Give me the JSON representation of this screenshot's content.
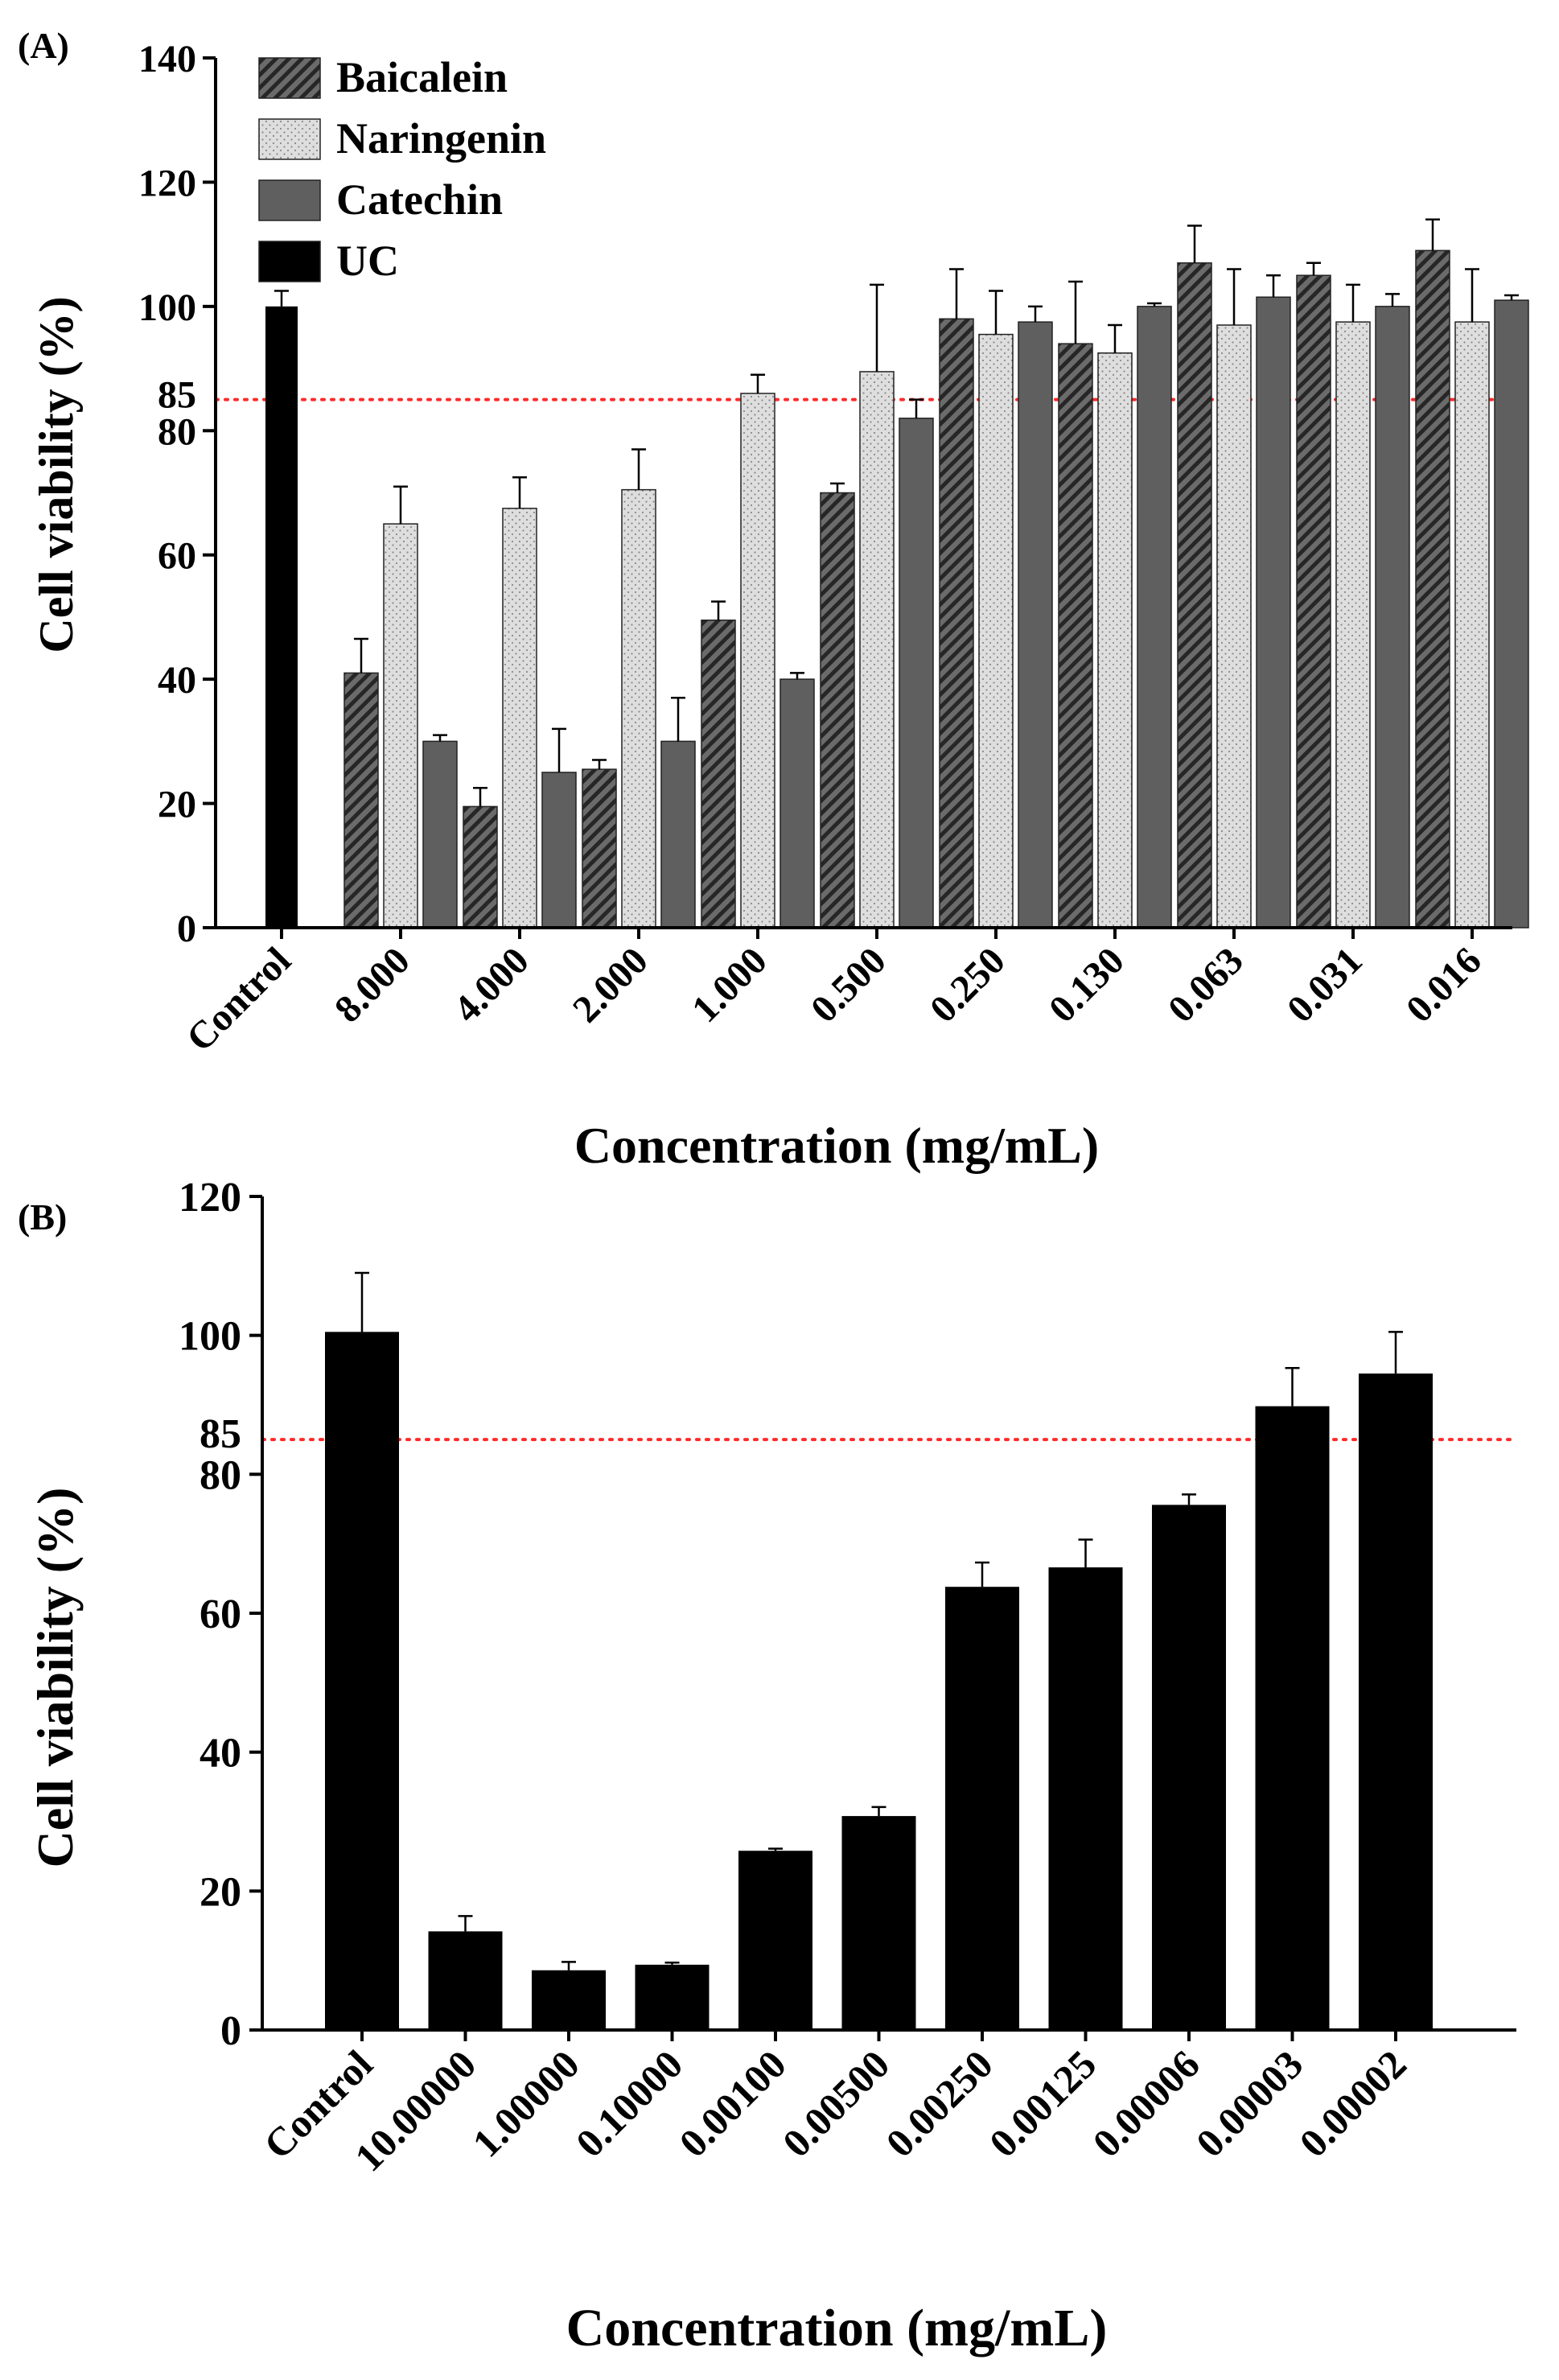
{
  "chart_data": [
    {
      "type": "bar",
      "panel_label": "(A)",
      "title": "",
      "xlabel": "Concentration (mg/mL)",
      "ylabel": "Cell viability (%)",
      "ylim": [
        0,
        140
      ],
      "yticks": [
        0,
        20,
        40,
        60,
        80,
        100,
        120,
        140
      ],
      "reference_line": {
        "value": 85,
        "label": "85",
        "color": "#ff2a2a",
        "style": "dotted"
      },
      "legend": {
        "placement": "top-left",
        "entries": [
          "Baicalein",
          "Naringenin",
          "Catechin",
          "UC"
        ]
      },
      "control": {
        "label": "Control",
        "series": "UC",
        "value": 100,
        "error": 2.5
      },
      "categories": [
        "8.000",
        "4.000",
        "2.000",
        "1.000",
        "0.500",
        "0.250",
        "0.130",
        "0.063",
        "0.031",
        "0.016"
      ],
      "series": [
        {
          "name": "Baicalein",
          "pattern": "hatch",
          "color": "#6b6b6b",
          "values": [
            41,
            19.5,
            25.5,
            49.5,
            70,
            98,
            94,
            107,
            105,
            109
          ],
          "errors": [
            5.5,
            3,
            1.5,
            3,
            1.5,
            8,
            10,
            6,
            2,
            5
          ]
        },
        {
          "name": "Naringenin",
          "pattern": "dots",
          "color": "#d9d9d9",
          "values": [
            65,
            67.5,
            70.5,
            86,
            89.5,
            95.5,
            92.5,
            97,
            97.5,
            97.5
          ],
          "errors": [
            6,
            5,
            6.5,
            3,
            14,
            7,
            4.5,
            9,
            6,
            8.5
          ]
        },
        {
          "name": "Catechin",
          "pattern": "solid",
          "color": "#5f5f5f",
          "values": [
            30,
            25,
            30,
            40,
            82,
            97.5,
            100,
            101.5,
            100,
            101
          ],
          "errors": [
            1,
            7,
            7,
            1,
            3,
            2.5,
            0.5,
            3.5,
            2,
            0.8
          ]
        }
      ]
    },
    {
      "type": "bar",
      "panel_label": "(B)",
      "title": "",
      "xlabel": "Concentration (mg/mL)",
      "ylabel": "Cell viability (%)",
      "ylim": [
        0,
        120
      ],
      "yticks": [
        0,
        20,
        40,
        60,
        80,
        100,
        120
      ],
      "reference_line": {
        "value": 85,
        "label": "85",
        "color": "#ff2a2a",
        "style": "dotted"
      },
      "categories": [
        "Control",
        "10.00000",
        "1.00000",
        "0.10000",
        "0.00100",
        "0.00500",
        "0.00250",
        "0.00125",
        "0.00006",
        "0.00003",
        "0.00002"
      ],
      "series": [
        {
          "name": "",
          "color": "#000000",
          "values": [
            100.5,
            14.2,
            8.6,
            9.4,
            25.8,
            30.8,
            63.8,
            66.6,
            75.6,
            89.8,
            94.5
          ],
          "errors": [
            8.5,
            2.2,
            1.2,
            0.3,
            0.3,
            1.3,
            3.5,
            4,
            1.5,
            5.5,
            6
          ]
        }
      ]
    }
  ]
}
